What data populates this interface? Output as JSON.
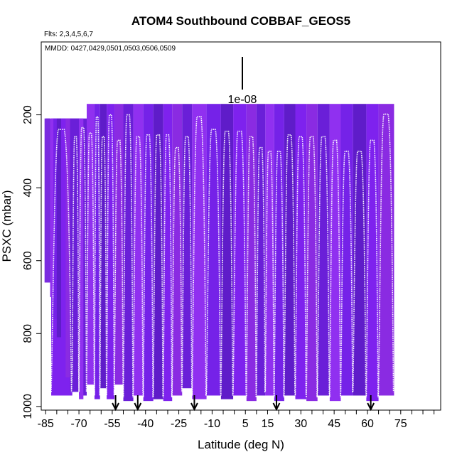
{
  "chart_data": {
    "type": "line",
    "title": "ATOM4 Southbound COBBAF_GEOS5",
    "flights_note": "Flts: 2,3,4,5,6,7",
    "dates_note": "MMDD: 0427,0429,0501,0503,0506,0509",
    "xlabel": "Latitude (deg N)",
    "ylabel": "PSXC (mbar)",
    "xlim": [
      -87,
      93
    ],
    "ylim": [
      1010,
      0
    ],
    "y_reversed": true,
    "x_ticks": [
      -85,
      -70,
      -55,
      -40,
      -25,
      -10,
      5,
      15,
      30,
      45,
      60,
      75
    ],
    "y_ticks": [
      200,
      400,
      600,
      800,
      1000
    ],
    "scale_label": "1e-08",
    "curtain": {
      "lat_range": [
        -85,
        72
      ],
      "top_pressure": 170,
      "colors": [
        "#7e22ee",
        "#8a2be2",
        "#6a1fd8",
        "#9030f0",
        "#7522e8",
        "#5f1cc9"
      ]
    },
    "arrow_latitudes": [
      -53.5,
      -43.5,
      -18,
      19,
      61.5
    ],
    "profile_cycles": [
      {
        "lat_start": -82.5,
        "lat_end": -73,
        "top": 240,
        "bottom": 960
      },
      {
        "lat_start": -73,
        "lat_end": -70,
        "top": 260,
        "bottom": 900
      },
      {
        "lat_start": -70,
        "lat_end": -66.5,
        "top": 235,
        "bottom": 960
      },
      {
        "lat_start": -66.5,
        "lat_end": -63,
        "top": 250,
        "bottom": 930
      },
      {
        "lat_start": -63,
        "lat_end": -60.5,
        "top": 205,
        "bottom": 970
      },
      {
        "lat_start": -60.5,
        "lat_end": -57.5,
        "top": 260,
        "bottom": 940
      },
      {
        "lat_start": -57.5,
        "lat_end": -54,
        "top": 200,
        "bottom": 970
      },
      {
        "lat_start": -54,
        "lat_end": -50,
        "top": 270,
        "bottom": 930
      },
      {
        "lat_start": -50,
        "lat_end": -45.5,
        "top": 200,
        "bottom": 975
      },
      {
        "lat_start": -45.5,
        "lat_end": -41,
        "top": 260,
        "bottom": 960
      },
      {
        "lat_start": -41,
        "lat_end": -36.5,
        "top": 255,
        "bottom": 975
      },
      {
        "lat_start": -36.5,
        "lat_end": -32,
        "top": 255,
        "bottom": 970
      },
      {
        "lat_start": -32,
        "lat_end": -28,
        "top": 255,
        "bottom": 975
      },
      {
        "lat_start": -28,
        "lat_end": -23.5,
        "top": 290,
        "bottom": 960
      },
      {
        "lat_start": -23.5,
        "lat_end": -19,
        "top": 260,
        "bottom": 940
      },
      {
        "lat_start": -19,
        "lat_end": -12.5,
        "top": 205,
        "bottom": 970
      },
      {
        "lat_start": -12.5,
        "lat_end": -6,
        "top": 240,
        "bottom": 960
      },
      {
        "lat_start": -6,
        "lat_end": -0.5,
        "top": 245,
        "bottom": 970
      },
      {
        "lat_start": -0.5,
        "lat_end": 5.5,
        "top": 245,
        "bottom": 960
      },
      {
        "lat_start": 5.5,
        "lat_end": 10,
        "top": 260,
        "bottom": 975
      },
      {
        "lat_start": 10,
        "lat_end": 14,
        "top": 290,
        "bottom": 960
      },
      {
        "lat_start": 14,
        "lat_end": 18,
        "top": 300,
        "bottom": 960
      },
      {
        "lat_start": 18,
        "lat_end": 22.5,
        "top": 300,
        "bottom": 975
      },
      {
        "lat_start": 22.5,
        "lat_end": 27.5,
        "top": 255,
        "bottom": 960
      },
      {
        "lat_start": 27.5,
        "lat_end": 32.5,
        "top": 260,
        "bottom": 970
      },
      {
        "lat_start": 32.5,
        "lat_end": 37.5,
        "top": 260,
        "bottom": 975
      },
      {
        "lat_start": 37.5,
        "lat_end": 43,
        "top": 260,
        "bottom": 960
      },
      {
        "lat_start": 43,
        "lat_end": 48,
        "top": 270,
        "bottom": 975
      },
      {
        "lat_start": 48,
        "lat_end": 53.5,
        "top": 300,
        "bottom": 960
      },
      {
        "lat_start": 53.5,
        "lat_end": 59.5,
        "top": 300,
        "bottom": 960
      },
      {
        "lat_start": 59.5,
        "lat_end": 65,
        "top": 270,
        "bottom": 975
      },
      {
        "lat_start": 65,
        "lat_end": 72,
        "top": 198,
        "bottom": 960
      }
    ]
  }
}
